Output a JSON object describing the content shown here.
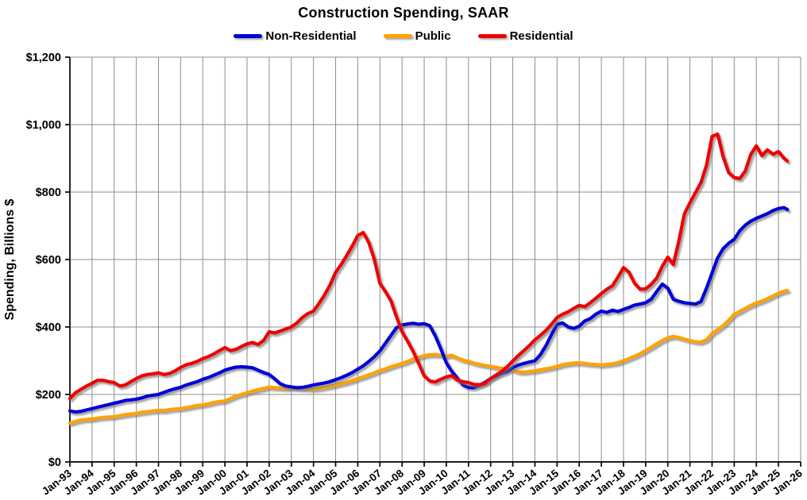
{
  "title": "Construction Spending, SAAR",
  "legend": {
    "items": [
      {
        "label": "Non-Residential",
        "color": "#0000D9"
      },
      {
        "label": "Public",
        "color": "#FFA200"
      },
      {
        "label": "Residential",
        "color": "#EE0000"
      }
    ]
  },
  "y_axis": {
    "title": "Spending, Billions $",
    "tick_labels": [
      "$0",
      "$200",
      "$400",
      "$600",
      "$800",
      "$1,000",
      "$1,200"
    ]
  },
  "x_axis": {
    "tick_labels": [
      "Jan-93",
      "Jan-94",
      "Jan-95",
      "Jan-96",
      "Jan-97",
      "Jan-98",
      "Jan-99",
      "Jan-00",
      "Jan-01",
      "Jan-02",
      "Jan-03",
      "Jan-04",
      "Jan-05",
      "Jan-06",
      "Jan-07",
      "Jan-08",
      "Jan-09",
      "Jan-10",
      "Jan-11",
      "Jan-12",
      "Jan-13",
      "Jan-14",
      "Jan-15",
      "Jan-16",
      "Jan-17",
      "Jan-18",
      "Jan-19",
      "Jan-20",
      "Jan-21",
      "Jan-22",
      "Jan-23",
      "Jan-24",
      "Jan-25",
      "Jan-26"
    ]
  },
  "chart_data": {
    "type": "line",
    "title": "Construction Spending, SAAR",
    "xlabel": "",
    "ylabel": "Spending, Billions $",
    "xlim": [
      1993,
      2026
    ],
    "ylim": [
      0,
      1200
    ],
    "ystep": 200,
    "grid": true,
    "legend_position": "top",
    "units": "billions of dollars, seasonally adjusted annual rate",
    "x": [
      1993,
      1993.25,
      1993.5,
      1993.75,
      1994,
      1994.25,
      1994.5,
      1994.75,
      1995,
      1995.25,
      1995.5,
      1995.75,
      1996,
      1996.25,
      1996.5,
      1996.75,
      1997,
      1997.25,
      1997.5,
      1997.75,
      1998,
      1998.25,
      1998.5,
      1998.75,
      1999,
      1999.25,
      1999.5,
      1999.75,
      2000,
      2000.25,
      2000.5,
      2000.75,
      2001,
      2001.25,
      2001.5,
      2001.75,
      2002,
      2002.25,
      2002.5,
      2002.75,
      2003,
      2003.25,
      2003.5,
      2003.75,
      2004,
      2004.25,
      2004.5,
      2004.75,
      2005,
      2005.25,
      2005.5,
      2005.75,
      2006,
      2006.25,
      2006.5,
      2006.75,
      2007,
      2007.25,
      2007.5,
      2007.75,
      2008,
      2008.25,
      2008.5,
      2008.75,
      2009,
      2009.25,
      2009.5,
      2009.75,
      2010,
      2010.25,
      2010.5,
      2010.75,
      2011,
      2011.25,
      2011.5,
      2011.75,
      2012,
      2012.25,
      2012.5,
      2012.75,
      2013,
      2013.25,
      2013.5,
      2013.75,
      2014,
      2014.25,
      2014.5,
      2014.75,
      2015,
      2015.25,
      2015.5,
      2015.75,
      2016,
      2016.25,
      2016.5,
      2016.75,
      2017,
      2017.25,
      2017.5,
      2017.75,
      2018,
      2018.25,
      2018.5,
      2018.75,
      2019,
      2019.25,
      2019.5,
      2019.75,
      2020,
      2020.25,
      2020.5,
      2020.75,
      2021,
      2021.25,
      2021.5,
      2021.75,
      2022,
      2022.25,
      2022.5,
      2022.75,
      2023,
      2023.25,
      2023.5,
      2023.75,
      2024,
      2024.25,
      2024.5,
      2024.75,
      2025,
      2025.25,
      2025.4
    ],
    "series": [
      {
        "name": "Non-Residential",
        "color": "#0000D9",
        "values": [
          151,
          148,
          150,
          154,
          158,
          162,
          166,
          170,
          174,
          178,
          182,
          184,
          186,
          190,
          195,
          198,
          200,
          206,
          212,
          217,
          221,
          228,
          233,
          238,
          245,
          250,
          257,
          264,
          272,
          277,
          281,
          282,
          281,
          279,
          272,
          265,
          259,
          246,
          232,
          225,
          222,
          220,
          221,
          224,
          228,
          231,
          234,
          238,
          244,
          250,
          257,
          265,
          275,
          285,
          298,
          312,
          329,
          352,
          375,
          398,
          406,
          409,
          411,
          408,
          410,
          404,
          374,
          335,
          294,
          268,
          248,
          228,
          221,
          220,
          227,
          236,
          247,
          255,
          262,
          268,
          280,
          287,
          292,
          296,
          300,
          318,
          345,
          378,
          408,
          412,
          400,
          396,
          402,
          418,
          425,
          438,
          447,
          443,
          450,
          446,
          452,
          458,
          465,
          468,
          472,
          482,
          505,
          527,
          515,
          482,
          476,
          472,
          470,
          468,
          475,
          515,
          560,
          605,
          632,
          648,
          660,
          685,
          702,
          714,
          722,
          729,
          736,
          745,
          751,
          754,
          748
        ]
      },
      {
        "name": "Public",
        "color": "#FFA200",
        "values": [
          115,
          120,
          124,
          126,
          127,
          130,
          132,
          133,
          134,
          137,
          140,
          142,
          144,
          147,
          149,
          151,
          153,
          152,
          155,
          157,
          158,
          161,
          164,
          167,
          169,
          172,
          176,
          179,
          181,
          188,
          195,
          200,
          205,
          210,
          214,
          218,
          222,
          220,
          219,
          218,
          220,
          219,
          218,
          217,
          216,
          218,
          221,
          224,
          228,
          232,
          236,
          241,
          247,
          252,
          258,
          264,
          271,
          276,
          282,
          287,
          292,
          298,
          305,
          310,
          315,
          318,
          318,
          316,
          314,
          316,
          308,
          302,
          298,
          293,
          289,
          286,
          283,
          280,
          278,
          276,
          273,
          267,
          266,
          268,
          270,
          273,
          276,
          279,
          283,
          288,
          291,
          293,
          294,
          292,
          290,
          289,
          287,
          289,
          291,
          294,
          300,
          306,
          313,
          321,
          330,
          340,
          350,
          360,
          368,
          372,
          369,
          364,
          360,
          356,
          355,
          362,
          381,
          392,
          404,
          420,
          438,
          446,
          455,
          464,
          471,
          477,
          484,
          492,
          500,
          506,
          508
        ]
      },
      {
        "name": "Residential",
        "color": "#EE0000",
        "values": [
          188,
          205,
          215,
          225,
          233,
          242,
          242,
          238,
          235,
          225,
          228,
          238,
          247,
          255,
          259,
          261,
          264,
          259,
          262,
          270,
          280,
          288,
          292,
          298,
          306,
          312,
          320,
          330,
          339,
          330,
          334,
          342,
          350,
          354,
          348,
          360,
          386,
          382,
          388,
          394,
          400,
          412,
          428,
          440,
          447,
          470,
          495,
          525,
          562,
          585,
          612,
          640,
          671,
          680,
          650,
          600,
          529,
          505,
          478,
          430,
          386,
          358,
          328,
          292,
          255,
          240,
          237,
          245,
          252,
          256,
          242,
          238,
          235,
          230,
          229,
          233,
          247,
          258,
          268,
          282,
          299,
          315,
          330,
          345,
          362,
          375,
          390,
          408,
          428,
          438,
          445,
          455,
          464,
          460,
          472,
          485,
          499,
          512,
          522,
          548,
          576,
          562,
          530,
          512,
          513,
          526,
          545,
          580,
          607,
          585,
          655,
          735,
          768,
          798,
          828,
          880,
          965,
          972,
          905,
          858,
          843,
          840,
          862,
          912,
          937,
          908,
          925,
          912,
          920,
          900,
          892
        ]
      }
    ]
  }
}
